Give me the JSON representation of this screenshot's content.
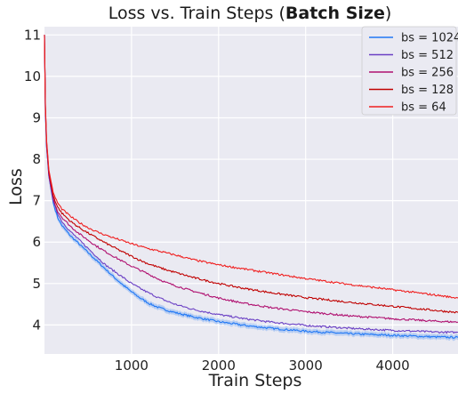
{
  "chart_data": {
    "type": "line",
    "title_prefix": "Loss vs. Train Steps (",
    "title_bold": "Batch Size",
    "title_suffix": ")",
    "xlabel": "Train Steps",
    "ylabel": "Loss",
    "xlim": [
      0,
      4750
    ],
    "ylim": [
      3.3,
      11.2
    ],
    "xticks": [
      1000,
      2000,
      3000,
      4000
    ],
    "yticks": [
      4,
      5,
      6,
      7,
      8,
      9,
      10,
      11
    ],
    "grid": true,
    "legend_position": "top-right",
    "colors": {
      "background": "#eaeaf2",
      "grid": "#ffffff"
    },
    "series": [
      {
        "name": "bs = 1024",
        "color": "#1f77f5",
        "band": true,
        "x": [
          0,
          10,
          25,
          50,
          100,
          150,
          200,
          300,
          400,
          500,
          600,
          700,
          800,
          900,
          1000,
          1100,
          1200,
          1300,
          1400,
          1500,
          1700,
          2000,
          2300,
          2600,
          3000,
          3500,
          4000,
          4500,
          4750
        ],
        "y": [
          11.0,
          9.2,
          8.3,
          7.6,
          6.95,
          6.6,
          6.4,
          6.15,
          5.95,
          5.75,
          5.55,
          5.35,
          5.15,
          4.97,
          4.8,
          4.65,
          4.52,
          4.43,
          4.36,
          4.3,
          4.2,
          4.08,
          3.99,
          3.92,
          3.85,
          3.79,
          3.75,
          3.71,
          3.7
        ]
      },
      {
        "name": "bs = 512",
        "color": "#6a3fc4",
        "band": false,
        "x": [
          0,
          10,
          25,
          50,
          100,
          150,
          200,
          300,
          400,
          500,
          600,
          700,
          800,
          900,
          1000,
          1100,
          1200,
          1300,
          1400,
          1500,
          1700,
          2000,
          2300,
          2600,
          3000,
          3500,
          4000,
          4500,
          4750
        ],
        "y": [
          11.0,
          9.2,
          8.3,
          7.6,
          7.0,
          6.7,
          6.5,
          6.25,
          6.05,
          5.85,
          5.65,
          5.45,
          5.3,
          5.15,
          5.0,
          4.88,
          4.77,
          4.67,
          4.58,
          4.5,
          4.38,
          4.25,
          4.15,
          4.07,
          3.99,
          3.92,
          3.87,
          3.83,
          3.82
        ]
      },
      {
        "name": "bs = 256",
        "color": "#b01070",
        "band": false,
        "x": [
          0,
          10,
          25,
          50,
          100,
          150,
          200,
          300,
          400,
          500,
          600,
          700,
          800,
          900,
          1000,
          1100,
          1200,
          1300,
          1400,
          1500,
          1700,
          2000,
          2300,
          2600,
          3000,
          3500,
          4000,
          4500,
          4750
        ],
        "y": [
          11.0,
          9.25,
          8.35,
          7.65,
          7.05,
          6.75,
          6.6,
          6.38,
          6.2,
          6.05,
          5.9,
          5.77,
          5.65,
          5.53,
          5.42,
          5.32,
          5.22,
          5.12,
          5.02,
          4.95,
          4.82,
          4.65,
          4.52,
          4.42,
          4.32,
          4.22,
          4.15,
          4.09,
          4.07
        ]
      },
      {
        "name": "bs = 128",
        "color": "#c00000",
        "band": false,
        "x": [
          0,
          10,
          25,
          50,
          100,
          150,
          200,
          300,
          400,
          500,
          600,
          700,
          800,
          900,
          1000,
          1100,
          1200,
          1300,
          1400,
          1500,
          1700,
          2000,
          2300,
          2600,
          3000,
          3500,
          4000,
          4500,
          4750
        ],
        "y": [
          11.0,
          9.3,
          8.4,
          7.7,
          7.12,
          6.85,
          6.7,
          6.5,
          6.35,
          6.22,
          6.1,
          5.98,
          5.87,
          5.76,
          5.66,
          5.56,
          5.47,
          5.4,
          5.33,
          5.27,
          5.15,
          5.0,
          4.88,
          4.78,
          4.66,
          4.55,
          4.45,
          4.35,
          4.3
        ]
      },
      {
        "name": "bs = 64",
        "color": "#f02020",
        "band": false,
        "x": [
          0,
          10,
          25,
          50,
          100,
          150,
          200,
          300,
          400,
          500,
          600,
          700,
          800,
          900,
          1000,
          1100,
          1200,
          1300,
          1400,
          1500,
          1700,
          2000,
          2300,
          2600,
          3000,
          3500,
          4000,
          4500,
          4750
        ],
        "y": [
          11.0,
          9.35,
          8.45,
          7.75,
          7.2,
          6.95,
          6.8,
          6.62,
          6.47,
          6.35,
          6.25,
          6.17,
          6.1,
          6.03,
          5.96,
          5.9,
          5.84,
          5.79,
          5.74,
          5.69,
          5.58,
          5.45,
          5.35,
          5.25,
          5.12,
          4.98,
          4.85,
          4.72,
          4.65
        ]
      }
    ]
  }
}
